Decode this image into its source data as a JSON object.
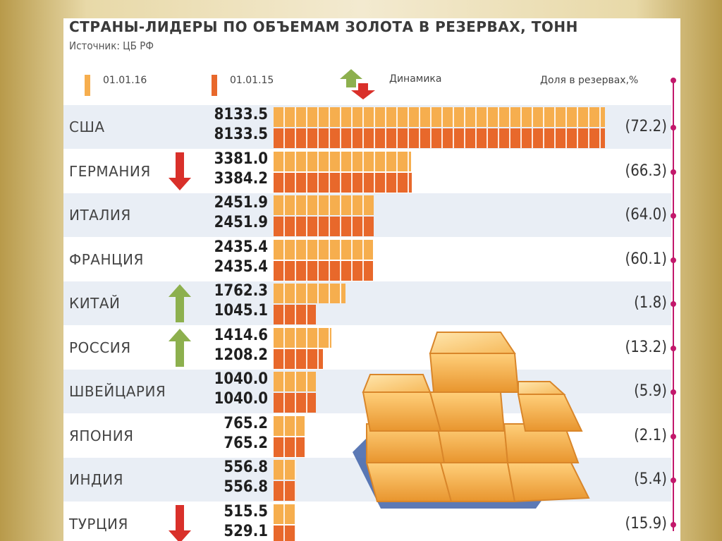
{
  "title": "СТРАНЫ-ЛИДЕРЫ ПО ОБЪЕМАМ ЗОЛОТА В РЕЗЕРВАХ, ТОНН",
  "source": "Источник: ЦБ РФ",
  "legend": {
    "date_2016": "01.01.16",
    "date_2015": "01.01.15",
    "dynamics": "Динамика",
    "share": "Доля в резервах,%"
  },
  "colors": {
    "bar_2016": "#f6ae4e",
    "bar_2015": "#e8682b",
    "arrow_up": "#8db04e",
    "arrow_down": "#d9302a",
    "share_line": "#c2186b",
    "band": "#e9eef5"
  },
  "chart_data": {
    "type": "bar",
    "orientation": "horizontal",
    "categories": [
      "США",
      "ГЕРМАНИЯ",
      "ИТАЛИЯ",
      "ФРАНЦИЯ",
      "КИТАЙ",
      "РОССИЯ",
      "ШВЕЙЦАРИЯ",
      "ЯПОНИЯ",
      "ИНДИЯ",
      "ТУРЦИЯ"
    ],
    "series": [
      {
        "name": "01.01.16",
        "values": [
          "8133.5",
          "3381.0",
          "2451.9",
          "2435.4",
          "1762.3",
          "1414.6",
          "1040.0",
          "765.2",
          "556.8",
          "515.5"
        ]
      },
      {
        "name": "01.01.15",
        "values": [
          "8133.5",
          "3384.2",
          "2451.9",
          "2435.4",
          "1045.1",
          "1208.2",
          "1040.0",
          "765.2",
          "556.8",
          "529.1"
        ]
      }
    ],
    "dynamics": [
      "none",
      "down",
      "none",
      "none",
      "up",
      "up",
      "none",
      "none",
      "none",
      "down"
    ],
    "share_in_reserves": [
      "(72.2)",
      "(66.3)",
      "(64.0)",
      "(60.1)",
      "(1.8)",
      "(13.2)",
      "(5.9)",
      "(2.1)",
      "(5.4)",
      "(15.9)"
    ],
    "xlim": [
      0,
      8133.5
    ]
  }
}
